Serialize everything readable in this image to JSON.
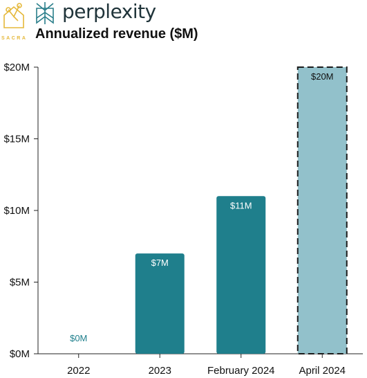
{
  "brand": {
    "sacra": "SACRA",
    "name": "perplexity"
  },
  "chart_data": {
    "type": "bar",
    "title": "Annualized revenue ($M)",
    "xlabel": "",
    "ylabel": "",
    "categories": [
      "2022",
      "2023",
      "February 2024",
      "April 2024"
    ],
    "values": [
      0,
      7,
      11,
      20
    ],
    "data_labels": [
      "$0M",
      "$7M",
      "$11M",
      "$20M"
    ],
    "projected": [
      false,
      false,
      false,
      true
    ],
    "ylim": [
      0,
      20
    ],
    "yticks": [
      0,
      5,
      10,
      15,
      20
    ],
    "ytick_labels": [
      "$0M",
      "$5M",
      "$10M",
      "$15M",
      "$20M"
    ],
    "grid": false,
    "colors": {
      "bar": "#1f7f8c",
      "projected_bar": "#92c1cb",
      "zero_label": "#1f7f8c",
      "axis": "#222222"
    }
  }
}
